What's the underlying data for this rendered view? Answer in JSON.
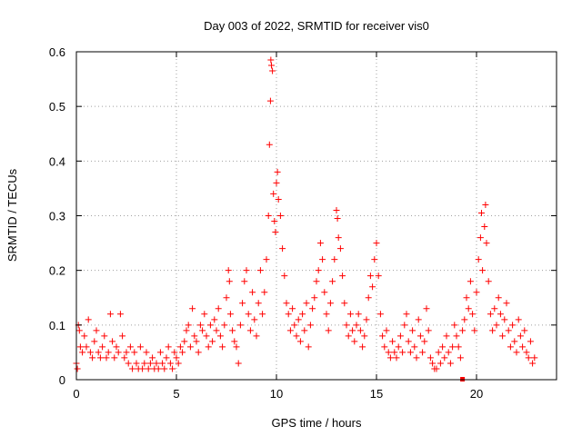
{
  "chart_data": {
    "type": "scatter",
    "title": "Day 003 of 2022, SRMTID for receiver vis0",
    "xlabel": "GPS time / hours",
    "ylabel": "SRMTID / TECUs",
    "xlim": [
      0,
      24
    ],
    "ylim": [
      0,
      0.6
    ],
    "x_ticks": [
      0,
      5,
      10,
      15,
      20
    ],
    "x_tick_labels": [
      "0",
      "5",
      "10",
      "15",
      "20"
    ],
    "y_ticks": [
      0,
      0.1,
      0.2,
      0.3,
      0.4,
      0.5,
      0.6
    ],
    "y_tick_labels": [
      "0",
      "0.1",
      "0.2",
      "0.3",
      "0.4",
      "0.5",
      "0.6"
    ],
    "grid": true,
    "marker": "plus",
    "color": "#ff0000",
    "series": [
      {
        "name": "SRMTID",
        "points": [
          [
            0.0,
            0.03
          ],
          [
            0.05,
            0.02
          ],
          [
            0.1,
            0.1
          ],
          [
            0.15,
            0.09
          ],
          [
            0.2,
            0.06
          ],
          [
            0.3,
            0.05
          ],
          [
            0.4,
            0.08
          ],
          [
            0.5,
            0.06
          ],
          [
            0.6,
            0.11
          ],
          [
            0.7,
            0.05
          ],
          [
            0.8,
            0.04
          ],
          [
            0.9,
            0.07
          ],
          [
            1.0,
            0.09
          ],
          [
            1.1,
            0.05
          ],
          [
            1.2,
            0.04
          ],
          [
            1.3,
            0.06
          ],
          [
            1.4,
            0.08
          ],
          [
            1.5,
            0.04
          ],
          [
            1.6,
            0.05
          ],
          [
            1.7,
            0.12
          ],
          [
            1.8,
            0.07
          ],
          [
            1.9,
            0.04
          ],
          [
            2.0,
            0.06
          ],
          [
            2.1,
            0.05
          ],
          [
            2.2,
            0.12
          ],
          [
            2.3,
            0.08
          ],
          [
            2.4,
            0.04
          ],
          [
            2.5,
            0.05
          ],
          [
            2.6,
            0.03
          ],
          [
            2.7,
            0.06
          ],
          [
            2.8,
            0.02
          ],
          [
            2.9,
            0.05
          ],
          [
            3.0,
            0.03
          ],
          [
            3.1,
            0.02
          ],
          [
            3.2,
            0.06
          ],
          [
            3.3,
            0.02
          ],
          [
            3.4,
            0.03
          ],
          [
            3.5,
            0.05
          ],
          [
            3.6,
            0.02
          ],
          [
            3.7,
            0.03
          ],
          [
            3.8,
            0.04
          ],
          [
            3.9,
            0.02
          ],
          [
            4.0,
            0.03
          ],
          [
            4.1,
            0.02
          ],
          [
            4.2,
            0.05
          ],
          [
            4.3,
            0.03
          ],
          [
            4.4,
            0.02
          ],
          [
            4.5,
            0.04
          ],
          [
            4.6,
            0.06
          ],
          [
            4.7,
            0.03
          ],
          [
            4.8,
            0.02
          ],
          [
            4.9,
            0.05
          ],
          [
            5.0,
            0.04
          ],
          [
            5.1,
            0.03
          ],
          [
            5.2,
            0.06
          ],
          [
            5.3,
            0.05
          ],
          [
            5.4,
            0.07
          ],
          [
            5.5,
            0.09
          ],
          [
            5.6,
            0.1
          ],
          [
            5.7,
            0.06
          ],
          [
            5.8,
            0.13
          ],
          [
            5.9,
            0.08
          ],
          [
            6.0,
            0.07
          ],
          [
            6.1,
            0.05
          ],
          [
            6.2,
            0.1
          ],
          [
            6.3,
            0.09
          ],
          [
            6.4,
            0.12
          ],
          [
            6.5,
            0.08
          ],
          [
            6.6,
            0.06
          ],
          [
            6.7,
            0.1
          ],
          [
            6.8,
            0.07
          ],
          [
            6.9,
            0.11
          ],
          [
            7.0,
            0.09
          ],
          [
            7.1,
            0.13
          ],
          [
            7.2,
            0.08
          ],
          [
            7.3,
            0.06
          ],
          [
            7.4,
            0.1
          ],
          [
            7.5,
            0.15
          ],
          [
            7.6,
            0.2
          ],
          [
            7.65,
            0.18
          ],
          [
            7.7,
            0.12
          ],
          [
            7.8,
            0.09
          ],
          [
            7.9,
            0.07
          ],
          [
            8.0,
            0.06
          ],
          [
            8.1,
            0.03
          ],
          [
            8.2,
            0.1
          ],
          [
            8.3,
            0.14
          ],
          [
            8.4,
            0.18
          ],
          [
            8.5,
            0.2
          ],
          [
            8.6,
            0.12
          ],
          [
            8.7,
            0.09
          ],
          [
            8.8,
            0.16
          ],
          [
            8.9,
            0.11
          ],
          [
            9.0,
            0.08
          ],
          [
            9.1,
            0.14
          ],
          [
            9.2,
            0.2
          ],
          [
            9.3,
            0.12
          ],
          [
            9.4,
            0.16
          ],
          [
            9.5,
            0.22
          ],
          [
            9.6,
            0.3
          ],
          [
            9.65,
            0.43
          ],
          [
            9.7,
            0.51
          ],
          [
            9.72,
            0.585
          ],
          [
            9.75,
            0.575
          ],
          [
            9.8,
            0.565
          ],
          [
            9.85,
            0.34
          ],
          [
            9.9,
            0.29
          ],
          [
            9.95,
            0.27
          ],
          [
            10.0,
            0.36
          ],
          [
            10.05,
            0.38
          ],
          [
            10.1,
            0.33
          ],
          [
            10.2,
            0.3
          ],
          [
            10.3,
            0.24
          ],
          [
            10.4,
            0.19
          ],
          [
            10.5,
            0.14
          ],
          [
            10.6,
            0.12
          ],
          [
            10.7,
            0.09
          ],
          [
            10.8,
            0.13
          ],
          [
            10.9,
            0.1
          ],
          [
            11.0,
            0.08
          ],
          [
            11.1,
            0.11
          ],
          [
            11.2,
            0.07
          ],
          [
            11.3,
            0.12
          ],
          [
            11.4,
            0.09
          ],
          [
            11.5,
            0.14
          ],
          [
            11.6,
            0.06
          ],
          [
            11.7,
            0.1
          ],
          [
            11.8,
            0.13
          ],
          [
            11.9,
            0.15
          ],
          [
            12.0,
            0.18
          ],
          [
            12.1,
            0.2
          ],
          [
            12.2,
            0.25
          ],
          [
            12.3,
            0.22
          ],
          [
            12.4,
            0.16
          ],
          [
            12.5,
            0.12
          ],
          [
            12.6,
            0.09
          ],
          [
            12.7,
            0.14
          ],
          [
            12.8,
            0.18
          ],
          [
            12.9,
            0.22
          ],
          [
            13.0,
            0.31
          ],
          [
            13.05,
            0.295
          ],
          [
            13.1,
            0.26
          ],
          [
            13.2,
            0.24
          ],
          [
            13.3,
            0.19
          ],
          [
            13.4,
            0.14
          ],
          [
            13.5,
            0.1
          ],
          [
            13.6,
            0.08
          ],
          [
            13.7,
            0.12
          ],
          [
            13.8,
            0.09
          ],
          [
            13.9,
            0.07
          ],
          [
            14.0,
            0.1
          ],
          [
            14.1,
            0.12
          ],
          [
            14.2,
            0.09
          ],
          [
            14.3,
            0.06
          ],
          [
            14.4,
            0.08
          ],
          [
            14.5,
            0.11
          ],
          [
            14.6,
            0.15
          ],
          [
            14.7,
            0.19
          ],
          [
            14.8,
            0.17
          ],
          [
            14.9,
            0.22
          ],
          [
            15.0,
            0.25
          ],
          [
            15.1,
            0.19
          ],
          [
            15.2,
            0.12
          ],
          [
            15.3,
            0.08
          ],
          [
            15.4,
            0.06
          ],
          [
            15.5,
            0.09
          ],
          [
            15.6,
            0.05
          ],
          [
            15.7,
            0.04
          ],
          [
            15.8,
            0.07
          ],
          [
            15.9,
            0.05
          ],
          [
            16.0,
            0.04
          ],
          [
            16.1,
            0.06
          ],
          [
            16.2,
            0.08
          ],
          [
            16.3,
            0.05
          ],
          [
            16.4,
            0.1
          ],
          [
            16.5,
            0.12
          ],
          [
            16.6,
            0.07
          ],
          [
            16.7,
            0.05
          ],
          [
            16.8,
            0.09
          ],
          [
            16.9,
            0.06
          ],
          [
            17.0,
            0.04
          ],
          [
            17.1,
            0.11
          ],
          [
            17.2,
            0.08
          ],
          [
            17.3,
            0.05
          ],
          [
            17.4,
            0.07
          ],
          [
            17.5,
            0.13
          ],
          [
            17.6,
            0.09
          ],
          [
            17.7,
            0.04
          ],
          [
            17.8,
            0.03
          ],
          [
            17.9,
            0.02
          ],
          [
            18.0,
            0.02
          ],
          [
            18.1,
            0.05
          ],
          [
            18.2,
            0.03
          ],
          [
            18.3,
            0.06
          ],
          [
            18.4,
            0.04
          ],
          [
            18.5,
            0.08
          ],
          [
            18.6,
            0.05
          ],
          [
            18.7,
            0.03
          ],
          [
            18.8,
            0.06
          ],
          [
            18.9,
            0.1
          ],
          [
            19.0,
            0.08
          ],
          [
            19.1,
            0.06
          ],
          [
            19.2,
            0.04
          ],
          [
            19.3,
            0.09
          ],
          [
            19.4,
            0.11
          ],
          [
            19.5,
            0.15
          ],
          [
            19.6,
            0.13
          ],
          [
            19.7,
            0.18
          ],
          [
            19.8,
            0.12
          ],
          [
            19.9,
            0.09
          ],
          [
            20.0,
            0.16
          ],
          [
            20.1,
            0.22
          ],
          [
            20.2,
            0.26
          ],
          [
            20.25,
            0.305
          ],
          [
            20.3,
            0.2
          ],
          [
            20.4,
            0.28
          ],
          [
            20.45,
            0.32
          ],
          [
            20.5,
            0.25
          ],
          [
            20.6,
            0.18
          ],
          [
            20.7,
            0.12
          ],
          [
            20.8,
            0.09
          ],
          [
            20.9,
            0.13
          ],
          [
            21.0,
            0.1
          ],
          [
            21.1,
            0.15
          ],
          [
            21.2,
            0.12
          ],
          [
            21.3,
            0.08
          ],
          [
            21.4,
            0.11
          ],
          [
            21.5,
            0.14
          ],
          [
            21.6,
            0.09
          ],
          [
            21.7,
            0.06
          ],
          [
            21.8,
            0.1
          ],
          [
            21.9,
            0.07
          ],
          [
            22.0,
            0.05
          ],
          [
            22.1,
            0.11
          ],
          [
            22.2,
            0.08
          ],
          [
            22.3,
            0.06
          ],
          [
            22.4,
            0.09
          ],
          [
            22.5,
            0.05
          ],
          [
            22.6,
            0.04
          ],
          [
            22.7,
            0.07
          ],
          [
            22.8,
            0.03
          ],
          [
            22.9,
            0.04
          ]
        ]
      }
    ],
    "annotations": [
      {
        "type": "square-marker",
        "x": 19.3,
        "y": 0.0
      }
    ]
  }
}
